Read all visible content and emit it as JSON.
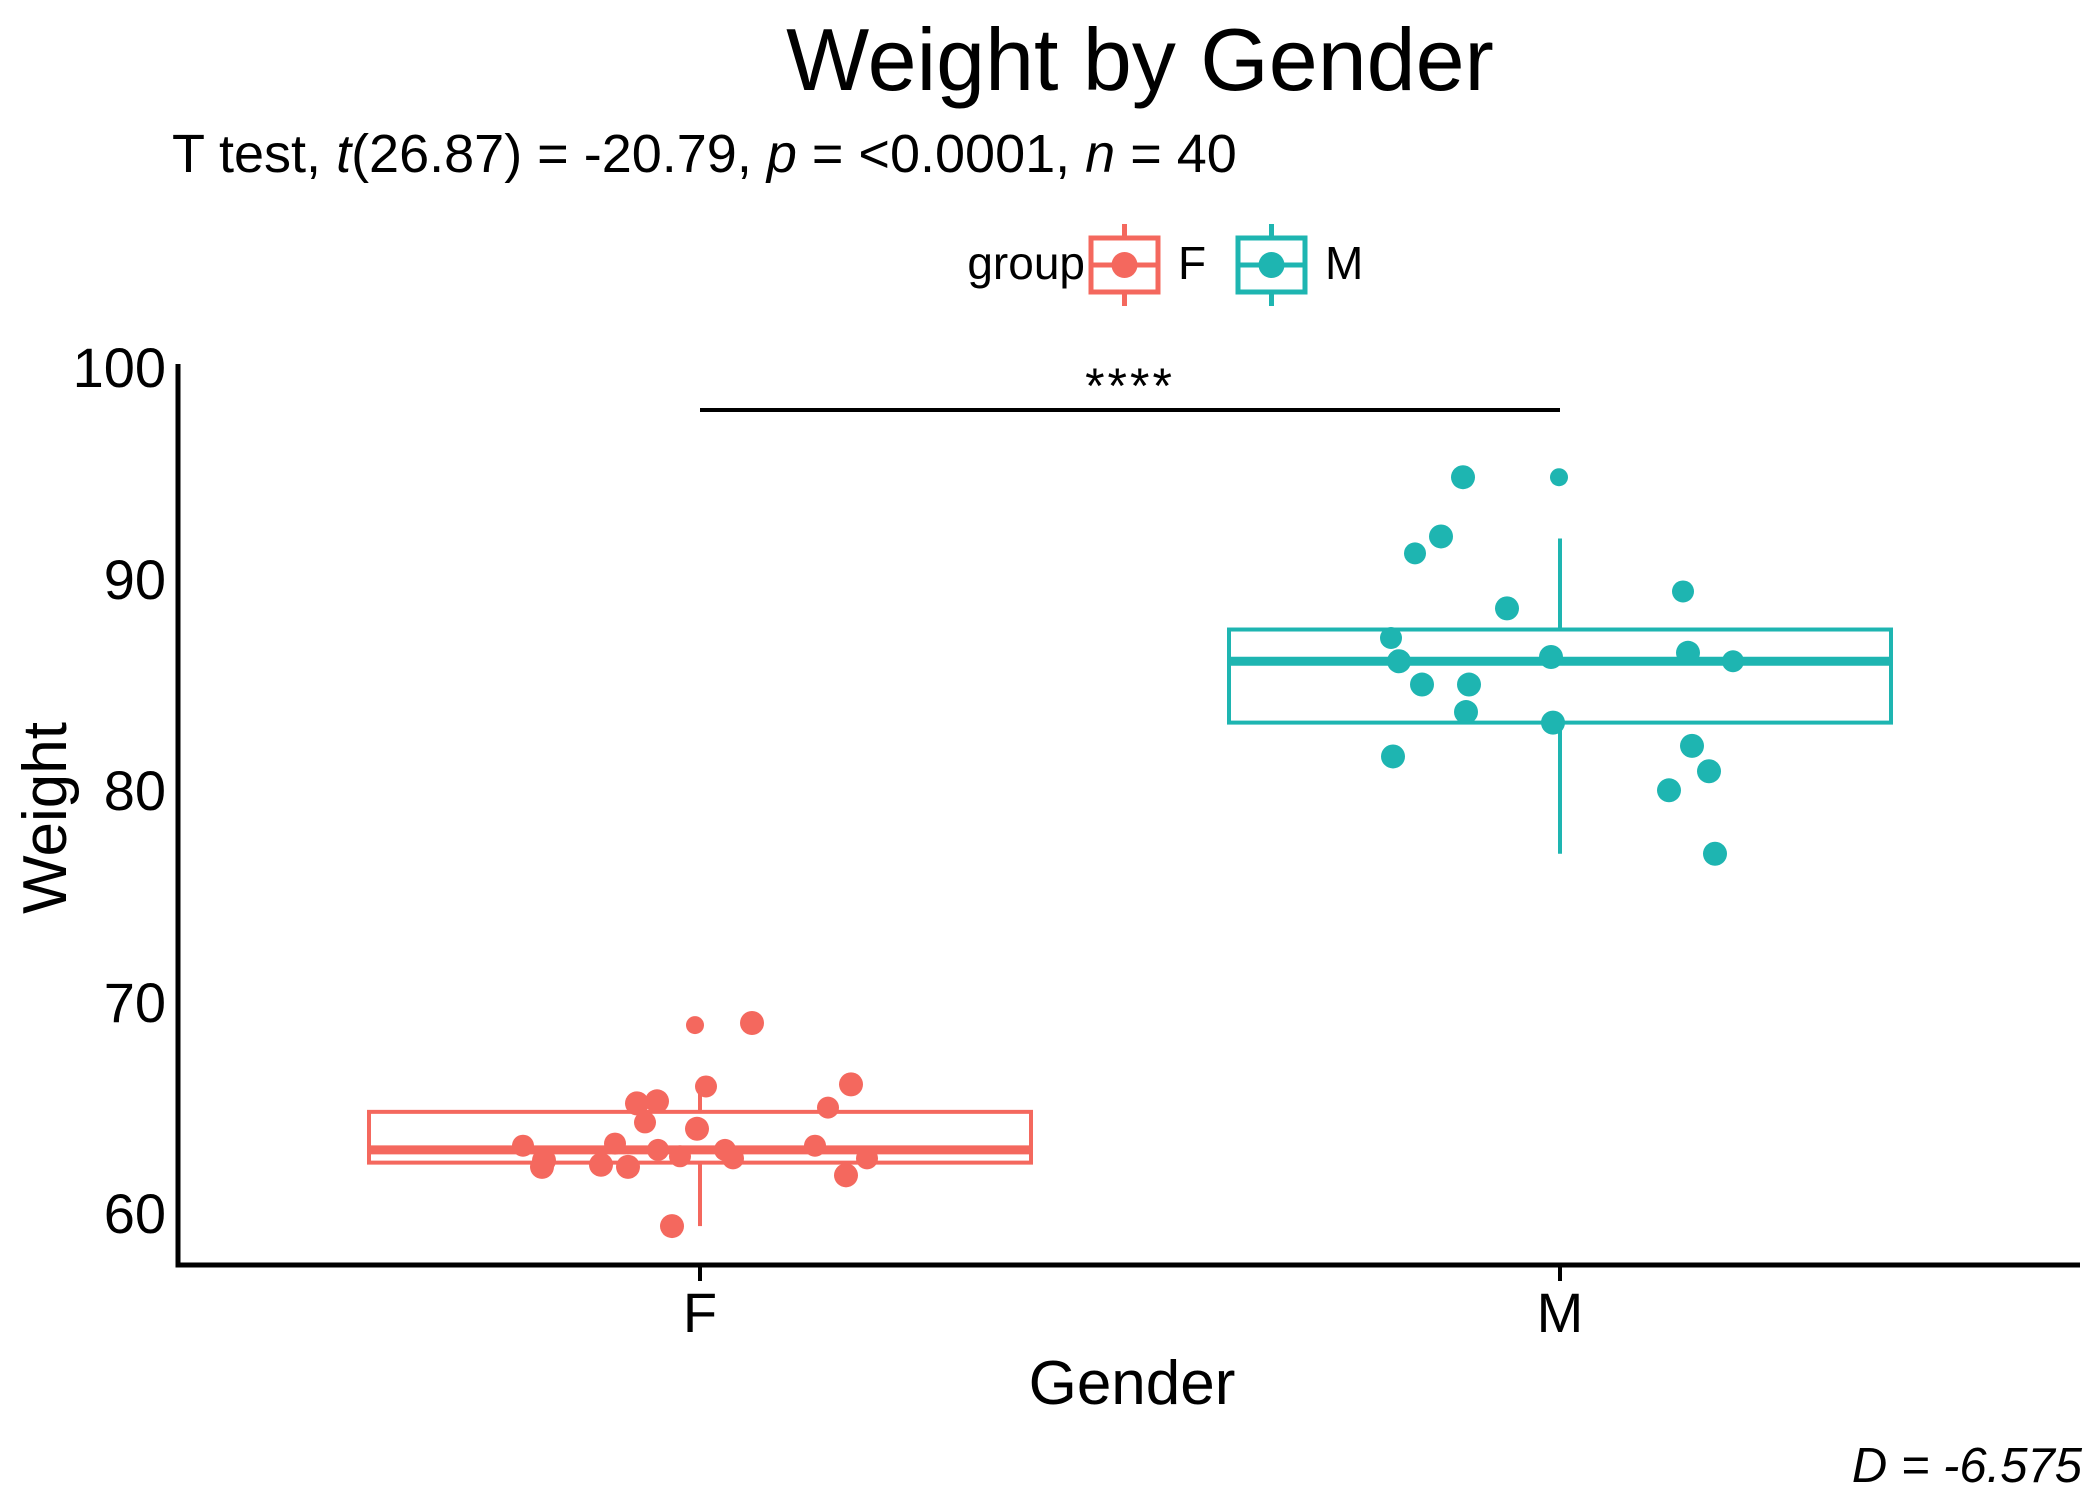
{
  "page": {
    "background": "#ffffff"
  },
  "chart_data": {
    "type": "boxplot+jitter",
    "title": "Weight by Gender",
    "subtitle_text": "T test, t(26.87) = -20.79, p = <0.0001, n = 40",
    "subtitle_segments": [
      "T test, ",
      "t",
      "(26.87) = -20.79, ",
      "p",
      " = <0.0001, ",
      "n",
      " = 40"
    ],
    "caption": "D = -6.575",
    "xlabel": "Gender",
    "ylabel": "Weight",
    "categories": [
      "F",
      "M"
    ],
    "y_axis": {
      "ticks": [
        60,
        70,
        80,
        90,
        100
      ],
      "domain": [
        57.5,
        100
      ],
      "grid": false
    },
    "legend": {
      "title": "group",
      "position": "top",
      "items": [
        {
          "label": "F",
          "color": "#F4685E"
        },
        {
          "label": "M",
          "color": "#1EB5B1"
        }
      ]
    },
    "significance": {
      "label": "****",
      "between": [
        "F",
        "M"
      ],
      "bar_height_value": 98
    },
    "series": [
      {
        "name": "F",
        "color": "#F4685E",
        "n": 20,
        "box": {
          "whisker_low": 59.4,
          "q1": 62.4,
          "median": 63.0,
          "q3": 64.8,
          "whisker_high": 66.0
        },
        "points": [
          [
            -5,
            68.9,
            9
          ],
          [
            52,
            69.0,
            12
          ],
          [
            6,
            66.0,
            11
          ],
          [
            151,
            66.1,
            12
          ],
          [
            -63,
            65.2,
            12
          ],
          [
            -43,
            65.3,
            12
          ],
          [
            128,
            65.0,
            11
          ],
          [
            -55,
            64.3,
            11
          ],
          [
            -3,
            64.0,
            12
          ],
          [
            -177,
            63.2,
            11
          ],
          [
            -85,
            63.3,
            11
          ],
          [
            -42,
            63.0,
            11
          ],
          [
            -20,
            62.7,
            11
          ],
          [
            25,
            63.0,
            11
          ],
          [
            115,
            63.2,
            11
          ],
          [
            -156,
            62.5,
            12
          ],
          [
            -158,
            62.2,
            12
          ],
          [
            -99,
            62.3,
            12
          ],
          [
            -72,
            62.2,
            12
          ],
          [
            33,
            62.6,
            11
          ],
          [
            167,
            62.6,
            11
          ],
          [
            146,
            61.8,
            12
          ],
          [
            -28,
            59.4,
            12
          ]
        ]
      },
      {
        "name": "M",
        "color": "#1EB5B1",
        "n": 20,
        "box": {
          "whisker_low": 77.0,
          "q1": 83.2,
          "median": 86.1,
          "q3": 87.6,
          "whisker_high": 91.9
        },
        "points": [
          [
            -97,
            94.8,
            12
          ],
          [
            -1,
            94.8,
            9
          ],
          [
            -119,
            92.0,
            12
          ],
          [
            -145,
            91.2,
            11
          ],
          [
            -53,
            88.6,
            12
          ],
          [
            123,
            89.4,
            11
          ],
          [
            -169,
            87.2,
            11
          ],
          [
            -161,
            86.1,
            12
          ],
          [
            -9,
            86.3,
            12
          ],
          [
            128,
            86.5,
            12
          ],
          [
            173,
            86.1,
            11
          ],
          [
            -138,
            85.0,
            12
          ],
          [
            -91,
            85.0,
            12
          ],
          [
            -94,
            83.7,
            12
          ],
          [
            -7,
            83.2,
            12
          ],
          [
            -167,
            81.6,
            12
          ],
          [
            132,
            82.1,
            12
          ],
          [
            149,
            80.9,
            12
          ],
          [
            109,
            80.0,
            12
          ],
          [
            155,
            77.0,
            12
          ]
        ]
      }
    ]
  }
}
